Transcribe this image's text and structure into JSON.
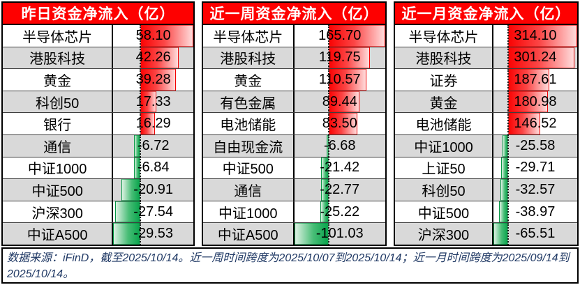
{
  "colors": {
    "header_bg": "#FE0000",
    "positive_bar": "#FA0404",
    "negative_bar": "#0AA54D",
    "row_alt_bg": "#D9D9D9",
    "note_text": "#1F3864"
  },
  "footer": {
    "text": "数据来源：iFinD，截至2025/10/14。近一周时间跨度为2025/10/07到2025/10/14；近一月时间跨度为2025/09/14到2025/10/14。"
  },
  "chart_data": [
    {
      "type": "table",
      "title": "昨日资金净流入（亿）",
      "value_unit": "亿",
      "bar_style": "gradient-databar, red positive / green negative, dotted zero axis",
      "rows": [
        {
          "label": "半导体芯片",
          "value": 58.1
        },
        {
          "label": "港股科技",
          "value": 42.26
        },
        {
          "label": "黄金",
          "value": 39.28
        },
        {
          "label": "科创50",
          "value": 17.33
        },
        {
          "label": "银行",
          "value": 16.29
        },
        {
          "label": "通信",
          "value": -6.72
        },
        {
          "label": "中证1000",
          "value": -6.84
        },
        {
          "label": "中证500",
          "value": -20.91
        },
        {
          "label": "沪深300",
          "value": -27.54
        },
        {
          "label": "中证A500",
          "value": -29.53
        }
      ]
    },
    {
      "type": "table",
      "title": "近一周资金净流入（亿）",
      "value_unit": "亿",
      "bar_style": "gradient-databar, red positive / green negative, dotted zero axis",
      "rows": [
        {
          "label": "半导体芯片",
          "value": 165.7
        },
        {
          "label": "港股科技",
          "value": 119.75
        },
        {
          "label": "黄金",
          "value": 110.57
        },
        {
          "label": "有色金属",
          "value": 89.44
        },
        {
          "label": "电池储能",
          "value": 83.5
        },
        {
          "label": "自由现金流",
          "value": -6.68
        },
        {
          "label": "中证500",
          "value": -21.42
        },
        {
          "label": "通信",
          "value": -22.77
        },
        {
          "label": "中证1000",
          "value": -25.22
        },
        {
          "label": "中证A500",
          "value": -101.03
        }
      ]
    },
    {
      "type": "table",
      "title": "近一月资金净流入（亿）",
      "value_unit": "亿",
      "bar_style": "gradient-databar, red positive / green negative, dotted zero axis",
      "rows": [
        {
          "label": "半导体芯片",
          "value": 314.1
        },
        {
          "label": "港股科技",
          "value": 301.24
        },
        {
          "label": "证券",
          "value": 187.61
        },
        {
          "label": "黄金",
          "value": 180.98
        },
        {
          "label": "电池储能",
          "value": 146.52
        },
        {
          "label": "中证1000",
          "value": -25.58
        },
        {
          "label": "上证50",
          "value": -29.71
        },
        {
          "label": "科创50",
          "value": -32.57
        },
        {
          "label": "中证500",
          "value": -38.97
        },
        {
          "label": "沪深300",
          "value": -65.51
        }
      ]
    }
  ]
}
